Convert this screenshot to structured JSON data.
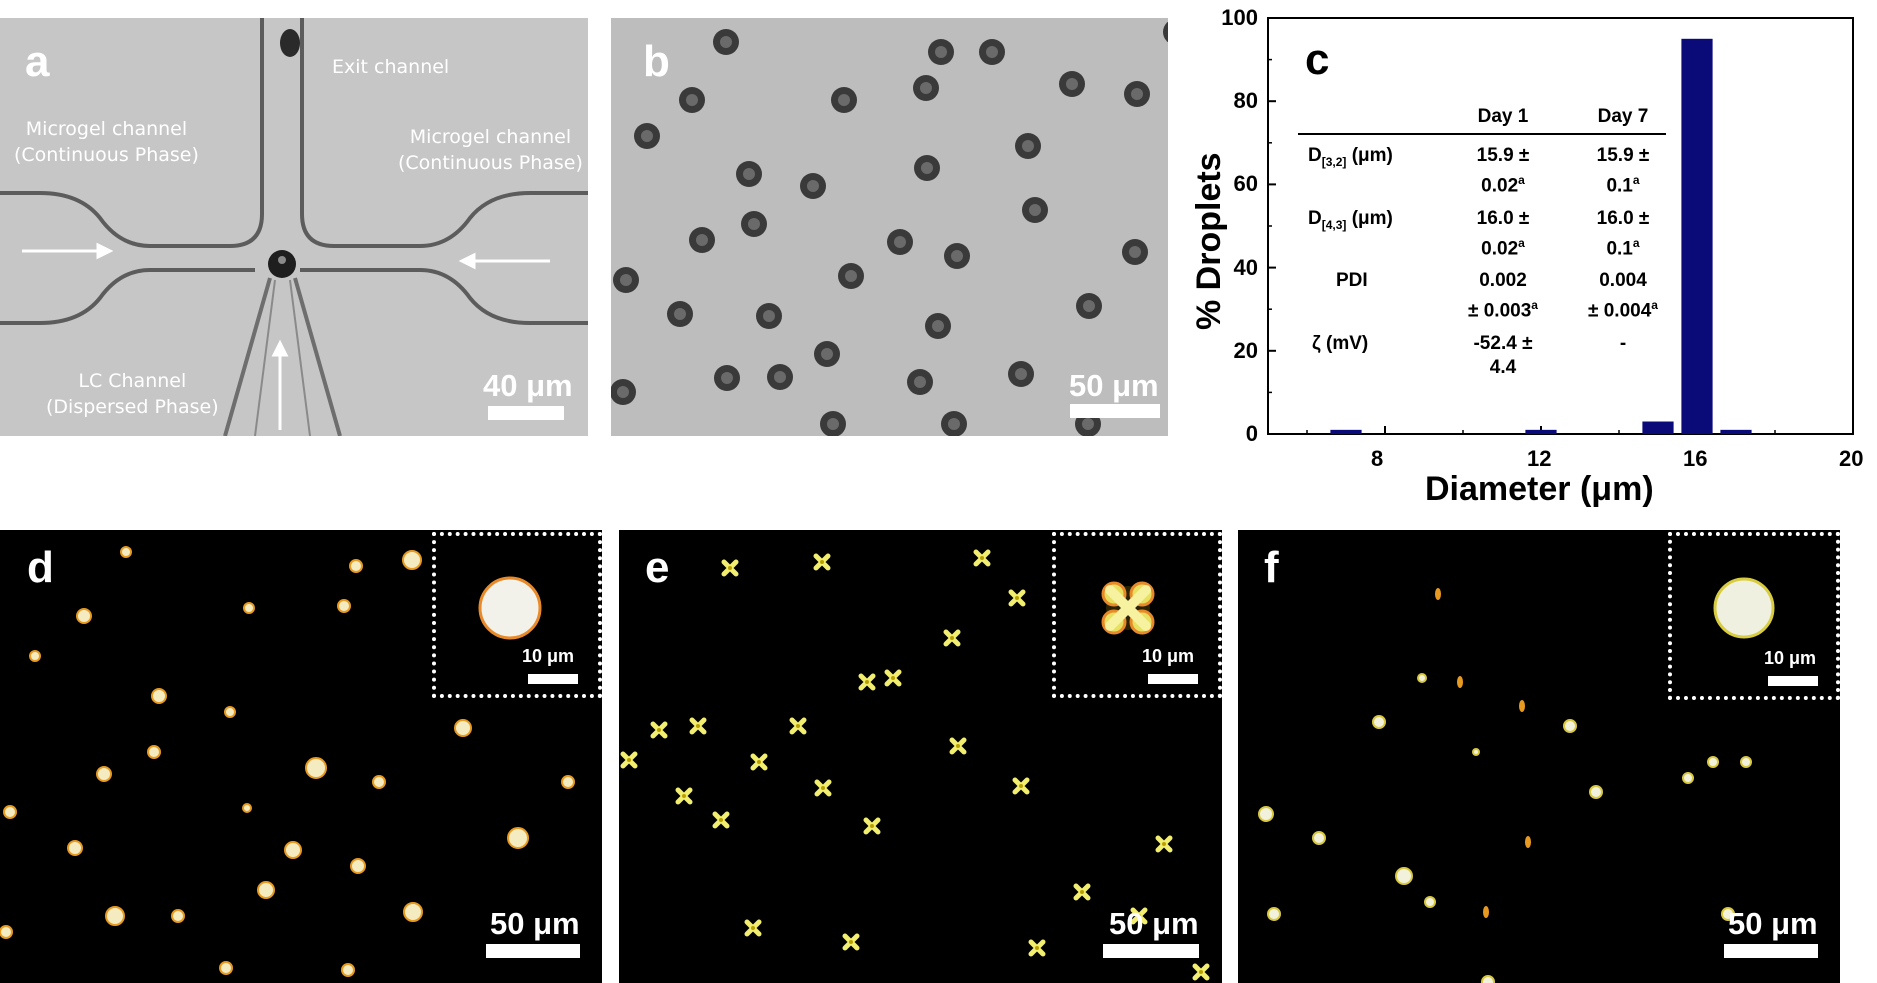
{
  "panels": {
    "a": {
      "label": "a",
      "exit_channel": "Exit channel",
      "left_channel_line1": "Microgel channel",
      "left_channel_line2": "(Continuous Phase)",
      "right_channel_line1": "Microgel channel",
      "right_channel_line2": "(Continuous Phase)",
      "lc_channel_line1": "LC Channel",
      "lc_channel_line2": "(Dispersed Phase)",
      "scale": "40 μm"
    },
    "b": {
      "label": "b",
      "scale": "50 μm"
    },
    "c": {
      "label": "c"
    },
    "d": {
      "label": "d",
      "scale": "50 μm",
      "inset_scale": "10 μm"
    },
    "e": {
      "label": "e",
      "scale": "50 μm",
      "inset_scale": "10 μm"
    },
    "f": {
      "label": "f",
      "scale": "50 μm",
      "inset_scale": "10 μm"
    }
  },
  "chart_data": {
    "type": "bar",
    "xlabel": "Diameter (μm)",
    "ylabel": "% Droplets",
    "xlim": [
      5,
      20
    ],
    "ylim": [
      0,
      100
    ],
    "x_ticks": [
      8,
      12,
      16,
      20
    ],
    "y_ticks": [
      0,
      20,
      40,
      60,
      80,
      100
    ],
    "bar_width": 0.8,
    "bar_color": "#0a0a78",
    "x": [
      7,
      12,
      15,
      16,
      17
    ],
    "values": [
      1,
      1,
      3,
      95,
      1
    ],
    "table": {
      "headers": [
        "",
        "Day 1",
        "Day 7"
      ],
      "rows": [
        {
          "param": "D",
          "sub": "[3,2]",
          "unit": " (μm)",
          "day1_l1": "15.9 ±",
          "day1_l2": "0.02",
          "day1_sup": "a",
          "day7_l1": "15.9 ±",
          "day7_l2": "0.1",
          "day7_sup": "a"
        },
        {
          "param": "D",
          "sub": "[4,3]",
          "unit": " (μm)",
          "day1_l1": "16.0 ±",
          "day1_l2": "0.02",
          "day1_sup": "a",
          "day7_l1": "16.0 ±",
          "day7_l2": "0.1",
          "day7_sup": "a"
        },
        {
          "param": "PDI",
          "sub": "",
          "unit": "",
          "day1_l1": "0.002",
          "day1_l2": "± 0.003",
          "day1_sup": "a",
          "day7_l1": "0.004",
          "day7_l2": "± 0.004",
          "day7_sup": "a"
        },
        {
          "param": "ζ (mV)",
          "sub": "",
          "unit": "",
          "day1_l1": "-52.4 ±",
          "day1_l2": "4.4",
          "day1_sup": "",
          "day7_l1": "-",
          "day7_l2": "",
          "day7_sup": ""
        }
      ]
    }
  }
}
